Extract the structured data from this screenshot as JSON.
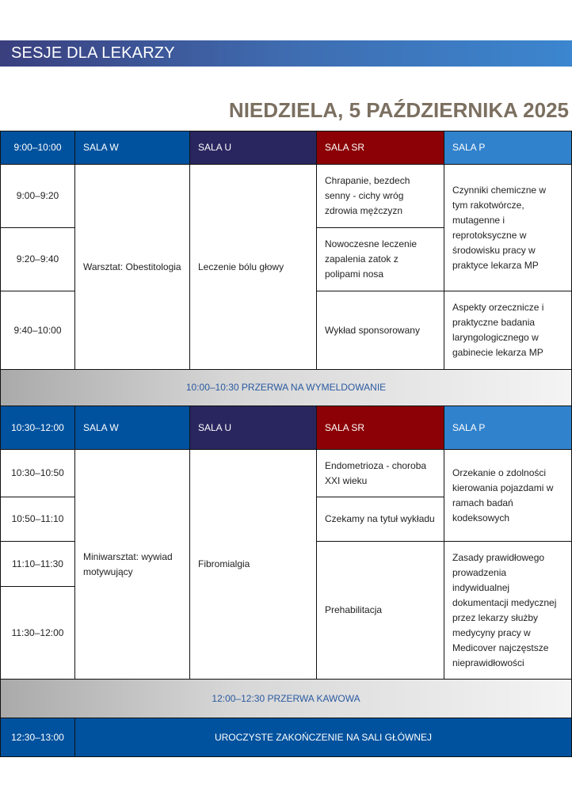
{
  "banner": "SESJE DLA LEKARZY",
  "date": "NIEDZIELA, 5 PAŹDZIERNIKA 2025",
  "colors": {
    "sala_w": "#00529e",
    "sala_u": "#29265f",
    "sala_sr": "#8b0105",
    "sala_p": "#3182cc",
    "title": "#7b6f60"
  },
  "block1": {
    "time": "9:00–10:00",
    "rooms": [
      "SALA W",
      "SALA U",
      "SALA SR",
      "SALA P"
    ],
    "slots": [
      "9:00–9:20",
      "9:20–9:40",
      "9:40–10:00"
    ],
    "w": "Warsztat: Obestitologia",
    "u": "Leczenie bólu głowy",
    "sr": [
      "Chrapanie, bezdech senny - cichy wróg zdrowia mężczyzn",
      "Nowoczesne leczenie zapalenia zatok z polipami nosa",
      "Wykład sponsorowany"
    ],
    "p": [
      "Czynniki chemiczne w tym rakotwórcze, mutagenne i reprotoksyczne w środowisku pracy w praktyce lekarza MP",
      "Aspekty orzecznicze i praktyczne badania laryngologicznego w gabinecie lekarza MP"
    ]
  },
  "break1": "10:00–10:30 PRZERWA NA WYMELDOWANIE",
  "block2": {
    "time": "10:30–12:00",
    "rooms": [
      "SALA W",
      "SALA U",
      "SALA SR",
      "SALA P"
    ],
    "slots": [
      "10:30–10:50",
      "10:50–11:10",
      "11:10–11:30",
      "11:30–12:00"
    ],
    "w": "Miniwarsztat: wywiad motywujący",
    "u": "Fibromialgia",
    "sr": [
      "Endometrioza - choroba XXI wieku",
      "Czekamy na tytuł wykładu",
      "Prehabilitacja"
    ],
    "p": [
      "Orzekanie o zdolności kierowania  pojazdami w ramach badań kodeksowych",
      "Zasady prawidłowego prowadzenia indywidualnej dokumentacji medycznej przez lekarzy służby medycyny pracy w Medicover  najczęstsze nieprawidłowości"
    ]
  },
  "break2": "12:00–12:30 PRZERWA KAWOWA",
  "closing": {
    "time": "12:30–13:00",
    "label": "UROCZYSTE ZAKOŃCZENIE NA SALI GŁÓWNEJ"
  }
}
